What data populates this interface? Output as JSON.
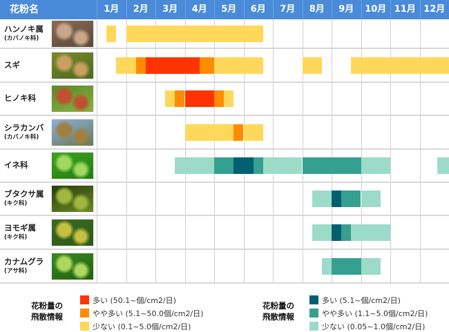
{
  "chart_data": {
    "type": "gantt",
    "header_label": "花粉名",
    "months": [
      "1月",
      "2月",
      "3月",
      "4月",
      "5月",
      "6月",
      "7月",
      "8月",
      "9月",
      "10月",
      "11月",
      "12月"
    ],
    "levels": {
      "tree": [
        {
          "key": "high",
          "label": "多い (50.1~個/cm2/日)",
          "color": "#ff3300"
        },
        {
          "key": "mid",
          "label": "やや多い (5.1~50.0個/cm2/日)",
          "color": "#ff8c00"
        },
        {
          "key": "low",
          "label": "少ない (0.1~5.0個/cm2/日)",
          "color": "#ffd75a"
        }
      ],
      "grass": [
        {
          "key": "high",
          "label": "多い (5.1~個/cm2/日)",
          "color": "#006070"
        },
        {
          "key": "mid",
          "label": "やや多い (1.1~5.0個/cm2/日)",
          "color": "#36a090"
        },
        {
          "key": "low",
          "label": "少ない (0.05~1.0個/cm2/日)",
          "color": "#9ddbc9"
        }
      ]
    },
    "legend_title_1": "花粉量の",
    "legend_title_2": "飛散情報",
    "rows": [
      {
        "name": "ハンノキ属",
        "sub": "(カバノキ科)",
        "scale": "tree",
        "photo": [
          "#8b6a50",
          "#c7a68a",
          "#5a4a3a"
        ],
        "segments": [
          [
            0.33,
            0.67,
            "low"
          ],
          [
            1.0,
            5.66,
            "low"
          ]
        ]
      },
      {
        "name": "スギ",
        "sub": "",
        "scale": "tree",
        "photo": [
          "#7a8a2a",
          "#c9a060",
          "#4a6a20"
        ],
        "segments": [
          [
            0.67,
            1.33,
            "low"
          ],
          [
            1.33,
            1.67,
            "mid"
          ],
          [
            1.67,
            3.5,
            "high"
          ],
          [
            3.5,
            4.0,
            "mid"
          ],
          [
            4.0,
            5.66,
            "low"
          ],
          [
            7.0,
            7.66,
            "low"
          ],
          [
            8.66,
            12.0,
            "low"
          ]
        ]
      },
      {
        "name": "ヒノキ科",
        "sub": "",
        "scale": "tree",
        "photo": [
          "#5a8a2a",
          "#c05030",
          "#8ab040"
        ],
        "segments": [
          [
            2.33,
            2.66,
            "low"
          ],
          [
            2.66,
            3.0,
            "mid"
          ],
          [
            3.0,
            4.0,
            "high"
          ],
          [
            4.0,
            4.33,
            "mid"
          ],
          [
            4.33,
            4.66,
            "low"
          ]
        ]
      },
      {
        "name": "シラカンバ",
        "sub": "(カバノキ科)",
        "scale": "tree",
        "photo": [
          "#8ab0e0",
          "#a08040",
          "#6a7a50"
        ],
        "segments": [
          [
            3.0,
            4.66,
            "low"
          ],
          [
            4.66,
            5.0,
            "mid"
          ],
          [
            5.0,
            5.66,
            "low"
          ]
        ]
      },
      {
        "name": "イネ科",
        "sub": "",
        "scale": "grass",
        "photo": [
          "#40a020",
          "#a0d860",
          "#208010"
        ],
        "segments": [
          [
            2.66,
            4.0,
            "low"
          ],
          [
            4.0,
            4.66,
            "mid"
          ],
          [
            4.66,
            5.33,
            "high"
          ],
          [
            5.33,
            5.66,
            "mid"
          ],
          [
            5.66,
            7.0,
            "low"
          ],
          [
            7.0,
            9.0,
            "mid"
          ],
          [
            9.0,
            10.0,
            "low"
          ],
          [
            11.6,
            12.0,
            "low"
          ]
        ]
      },
      {
        "name": "ブタクサ属",
        "sub": "(キク科)",
        "scale": "grass",
        "photo": [
          "#2a3a10",
          "#a0b840",
          "#6a8a20"
        ],
        "segments": [
          [
            7.33,
            8.0,
            "low"
          ],
          [
            8.0,
            8.33,
            "high"
          ],
          [
            8.33,
            9.0,
            "mid"
          ],
          [
            9.0,
            9.66,
            "low"
          ]
        ]
      },
      {
        "name": "ヨモギ属",
        "sub": "(キク科)",
        "scale": "grass",
        "photo": [
          "#3a6a20",
          "#c8c040",
          "#2a5a18"
        ],
        "segments": [
          [
            7.33,
            8.0,
            "low"
          ],
          [
            8.0,
            8.33,
            "high"
          ],
          [
            8.33,
            8.66,
            "mid"
          ],
          [
            8.66,
            10.0,
            "low"
          ]
        ]
      },
      {
        "name": "カナムグラ",
        "sub": "(アサ科)",
        "scale": "grass",
        "photo": [
          "#3a8a20",
          "#b0d860",
          "#206010"
        ],
        "segments": [
          [
            7.66,
            8.0,
            "low"
          ],
          [
            8.0,
            9.0,
            "mid"
          ],
          [
            9.0,
            9.66,
            "low"
          ]
        ]
      }
    ]
  }
}
